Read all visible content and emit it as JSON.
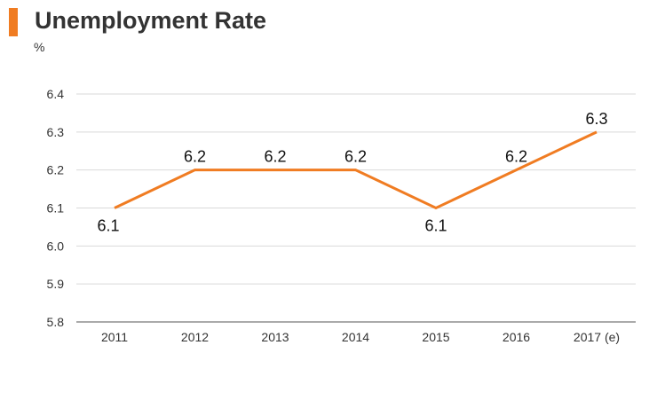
{
  "title": "Unemployment Rate",
  "unit": "%",
  "colors": {
    "accent": "#f07c22",
    "line": "#f07c22",
    "grid": "#d9d9d9",
    "axis": "#555555"
  },
  "chart_data": {
    "type": "line",
    "title": "Unemployment Rate",
    "ylabel": "%",
    "xlabel": "",
    "categories": [
      "2011",
      "2012",
      "2013",
      "2014",
      "2015",
      "2016",
      "2017 (e)"
    ],
    "series": [
      {
        "values": [
          6.1,
          6.2,
          6.2,
          6.2,
          6.1,
          6.2,
          6.3
        ]
      }
    ],
    "data_labels": [
      "6.1",
      "6.2",
      "6.2",
      "6.2",
      "6.1",
      "6.2",
      "6.3"
    ],
    "y_ticks": [
      "6.4",
      "6.3",
      "6.2",
      "6.1",
      "6.0",
      "5.9",
      "5.8"
    ],
    "y_tick_values": [
      6.4,
      6.3,
      6.2,
      6.1,
      6.0,
      5.9,
      5.8
    ],
    "ylim": [
      5.8,
      6.4
    ],
    "grid": true,
    "legend": "none"
  }
}
